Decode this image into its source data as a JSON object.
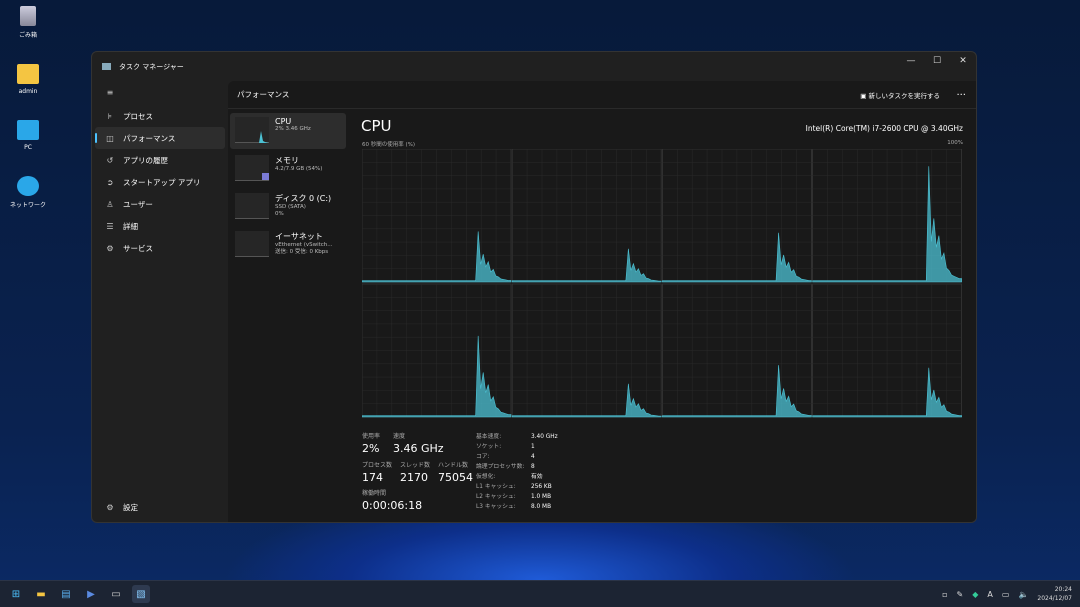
{
  "desktop": {
    "icons": [
      {
        "label": "ごみ箱"
      },
      {
        "label": "admin"
      },
      {
        "label": "PC"
      },
      {
        "label": "ネットワーク"
      }
    ]
  },
  "window": {
    "title": "タスク マネージャー",
    "controls": [
      "minimize",
      "maximize",
      "close"
    ]
  },
  "sidebar": {
    "menu_icon": "hamburger-icon",
    "items": [
      {
        "label": "プロセス",
        "icon": "processes-icon"
      },
      {
        "label": "パフォーマンス",
        "icon": "performance-icon",
        "active": true
      },
      {
        "label": "アプリの履歴",
        "icon": "history-icon"
      },
      {
        "label": "スタートアップ アプリ",
        "icon": "startup-icon"
      },
      {
        "label": "ユーザー",
        "icon": "users-icon"
      },
      {
        "label": "詳細",
        "icon": "details-icon"
      },
      {
        "label": "サービス",
        "icon": "services-icon"
      }
    ],
    "settings": "設定"
  },
  "header": {
    "title": "パフォーマンス",
    "run_task": "新しいタスクを実行する",
    "more": "..."
  },
  "resources": [
    {
      "name": "CPU",
      "line1": "2% 3.46 GHz",
      "active": true
    },
    {
      "name": "メモリ",
      "line1": "4.2/7.9 GB (54%)",
      "fill": 54,
      "color": "#7b7bd6"
    },
    {
      "name": "ディスク 0 (C:)",
      "line1": "SSD (SATA)",
      "line2": "0%"
    },
    {
      "name": "イーサネット",
      "line1": "vEthernet (vSwitch...",
      "line2": "送信: 0 受信: 0 Kbps"
    }
  ],
  "cpu": {
    "title": "CPU",
    "model": "Intel(R) Core(TM) i7-2600 CPU @ 3.40GHz",
    "graph_label": "60 秒間の使用率 (%)",
    "graph_max": "100%",
    "color": "#4cc2d4",
    "stats": {
      "usage_label": "使用率",
      "usage": "2%",
      "speed_label": "速度",
      "speed": "3.46 GHz",
      "proc_label": "プロセス数",
      "proc": "174",
      "thread_label": "スレッド数",
      "thread": "2170",
      "handle_label": "ハンドル数",
      "handle": "75054",
      "uptime_label": "稼働時間",
      "uptime": "0:00:06:18"
    },
    "specs": [
      {
        "k": "基本速度:",
        "v": "3.40 GHz"
      },
      {
        "k": "ソケット:",
        "v": "1"
      },
      {
        "k": "コア:",
        "v": "4"
      },
      {
        "k": "論理プロセッサ数:",
        "v": "8"
      },
      {
        "k": "仮想化:",
        "v": "有効"
      },
      {
        "k": "L1 キャッシュ:",
        "v": "256 KB"
      },
      {
        "k": "L2 キャッシュ:",
        "v": "1.0 MB"
      },
      {
        "k": "L3 キャッシュ:",
        "v": "8.0 MB"
      }
    ],
    "core_peaks": [
      38,
      25,
      37,
      87,
      61,
      25,
      39,
      37
    ]
  },
  "taskbar": {
    "time": "20:24",
    "date": "2024/12/07",
    "ime": "A"
  }
}
